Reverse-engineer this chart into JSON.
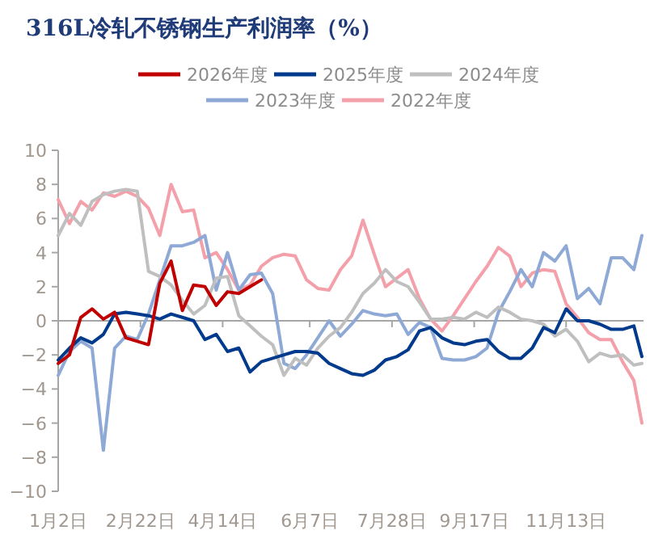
{
  "chart_data": {
    "type": "line",
    "title": "316L冷轧不锈钢生产利润率（%）",
    "legend": "top",
    "x": [
      "--01-02",
      "--01-09",
      "--01-16",
      "--01-23",
      "--01-30",
      "--02-06",
      "--02-13",
      "--02-20",
      "--02-27",
      "--03-06",
      "--03-13",
      "--03-20",
      "--03-27",
      "--04-03",
      "--04-10",
      "--04-17",
      "--04-24",
      "--05-01",
      "--05-08",
      "--05-15",
      "--05-22",
      "--05-29",
      "--06-05",
      "--06-12",
      "--06-19",
      "--06-26",
      "--07-03",
      "--07-10",
      "--07-17",
      "--07-24",
      "--07-31",
      "--08-07",
      "--08-14",
      "--08-21",
      "--08-28",
      "--09-04",
      "--09-11",
      "--09-18",
      "--09-25",
      "--10-02",
      "--10-09",
      "--10-16",
      "--10-23",
      "--10-30",
      "--11-06",
      "--11-13",
      "--11-20",
      "--11-27",
      "--12-04",
      "--12-11",
      "--12-18",
      "--12-25",
      "--12-30"
    ],
    "series": [
      {
        "name": "2026年度",
        "color": "#c00000",
        "values": [
          -2.5,
          -2.0,
          0.2,
          0.7,
          0.1,
          0.5,
          -1.0,
          -1.2,
          -1.4,
          2.2,
          3.5,
          0.6,
          2.1,
          2.0,
          0.9,
          1.7,
          1.6,
          2.0,
          2.4,
          null,
          null,
          null,
          null,
          null,
          null,
          null,
          null,
          null,
          null,
          null,
          null,
          null,
          null,
          null,
          null,
          null,
          null,
          null,
          null,
          null,
          null,
          null,
          null,
          null,
          null,
          null,
          null,
          null,
          null,
          null,
          null,
          null,
          null
        ]
      },
      {
        "name": "2025年度",
        "color": "#003a8c",
        "values": [
          -2.3,
          -1.6,
          -1.0,
          -1.3,
          -0.8,
          0.4,
          0.5,
          0.4,
          0.3,
          0.1,
          0.4,
          0.2,
          0.0,
          -1.1,
          -0.8,
          -1.8,
          -1.6,
          -3.0,
          -2.4,
          -2.2,
          -2.0,
          -1.8,
          -1.8,
          -1.9,
          -2.5,
          -2.8,
          -3.1,
          -3.2,
          -2.9,
          -2.3,
          -2.1,
          -1.7,
          -0.6,
          -0.4,
          -1.0,
          -1.3,
          -1.4,
          -1.2,
          -1.1,
          -1.8,
          -2.2,
          -2.2,
          -1.6,
          -0.4,
          -0.7,
          0.7,
          0.0,
          0.0,
          -0.2,
          -0.5,
          -0.5,
          -0.3,
          -2.1
        ]
      },
      {
        "name": "2024年度",
        "color": "#bfbfbf",
        "values": [
          5.0,
          6.3,
          5.6,
          7.0,
          7.4,
          7.6,
          7.7,
          7.6,
          2.9,
          2.6,
          2.1,
          1.2,
          0.4,
          0.9,
          2.5,
          2.6,
          0.3,
          -0.3,
          -0.9,
          -1.4,
          -3.2,
          -2.2,
          -2.6,
          -1.6,
          -0.9,
          -0.4,
          0.5,
          1.6,
          2.2,
          3.0,
          2.3,
          2.0,
          1.1,
          0.1,
          0.1,
          0.2,
          0.1,
          0.5,
          0.2,
          0.8,
          0.5,
          0.1,
          0.0,
          -0.2,
          -0.9,
          -0.5,
          -1.2,
          -2.4,
          -1.9,
          -2.1,
          -2.0,
          -2.6,
          -2.5
        ]
      },
      {
        "name": "2023年度",
        "color": "#8ea9d6",
        "values": [
          -3.2,
          -1.8,
          -1.2,
          -1.6,
          -7.6,
          -1.6,
          -0.9,
          -1.1,
          0.4,
          2.4,
          4.4,
          4.4,
          4.6,
          5.0,
          1.8,
          4.0,
          1.8,
          2.7,
          2.8,
          1.6,
          -2.5,
          -2.8,
          -2.0,
          -1.0,
          0.0,
          -0.9,
          -0.2,
          0.6,
          0.4,
          0.3,
          0.4,
          -0.8,
          -0.1,
          -0.4,
          -2.2,
          -2.3,
          -2.3,
          -2.1,
          -1.6,
          0.5,
          1.7,
          3.0,
          2.0,
          4.0,
          3.5,
          4.4,
          1.3,
          1.9,
          1.0,
          3.7,
          3.7,
          3.0,
          5.0
        ]
      },
      {
        "name": "2022年度",
        "color": "#f4a0aa",
        "values": [
          7.1,
          5.7,
          7.0,
          6.5,
          7.5,
          7.3,
          7.6,
          7.3,
          6.6,
          5.0,
          8.0,
          6.4,
          6.5,
          3.7,
          4.0,
          3.0,
          1.8,
          2.1,
          3.2,
          3.7,
          3.9,
          3.8,
          2.4,
          1.9,
          1.8,
          3.0,
          3.8,
          5.9,
          3.9,
          2.0,
          2.5,
          3.0,
          1.3,
          0.1,
          -0.6,
          0.3,
          1.3,
          2.3,
          3.2,
          4.3,
          3.8,
          2.0,
          2.8,
          3.0,
          2.9,
          1.0,
          0.2,
          -0.7,
          -1.1,
          -1.1,
          -2.4,
          -3.5,
          -6.0
        ]
      }
    ],
    "xlim": [
      "--01-02",
      "--12-31"
    ],
    "xticks": [
      {
        "value": "--01-02",
        "label": "1月2日"
      },
      {
        "value": "--02-22",
        "label": "2月22日"
      },
      {
        "value": "--04-14",
        "label": "4月14日"
      },
      {
        "value": "--06-07",
        "label": "6月7日"
      },
      {
        "value": "--07-28",
        "label": "7月28日"
      },
      {
        "value": "--09-17",
        "label": "9月17日"
      },
      {
        "value": "--11-13",
        "label": "11月13日"
      }
    ],
    "ylim": [
      -10,
      10
    ],
    "yticks": [
      -10,
      -8,
      -6,
      -4,
      -2,
      0,
      2,
      4,
      6,
      8,
      10
    ]
  }
}
